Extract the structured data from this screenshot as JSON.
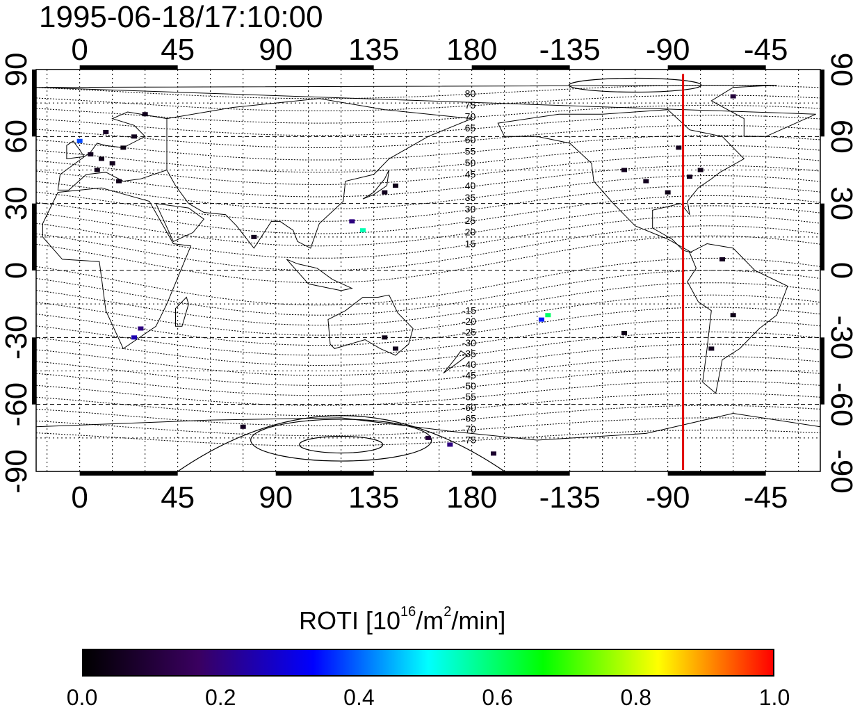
{
  "title": "1995-06-18/17:10:00",
  "axes": {
    "top_ticks": [
      "0",
      "45",
      "90",
      "135",
      "180",
      "-135",
      "-90",
      "-45"
    ],
    "bottom_ticks": [
      "0",
      "45",
      "90",
      "135",
      "180",
      "-135",
      "-90",
      "-45"
    ],
    "left_ticks": [
      "90",
      "60",
      "30",
      "0",
      "-30",
      "-60",
      "-90"
    ],
    "right_ticks": [
      "90",
      "60",
      "30",
      "0",
      "-30",
      "-60",
      "-90"
    ],
    "lon_range": [
      -20,
      340
    ],
    "lat_range": [
      -90,
      90
    ]
  },
  "magnetic_lat_labels_north": [
    "80",
    "75",
    "70",
    "65",
    "60",
    "55",
    "50",
    "45",
    "40",
    "35",
    "30",
    "25",
    "20",
    "15"
  ],
  "magnetic_lat_labels_south": [
    "-15",
    "-20",
    "-25",
    "-30",
    "-35",
    "-40",
    "-45",
    "-50",
    "-55",
    "-60",
    "-65",
    "-70",
    "-75"
  ],
  "terminator_line": {
    "lon": -83,
    "color": "#e00000"
  },
  "colorbar": {
    "title_prefix": "ROTI  [10",
    "title_sup1": "16",
    "title_mid": "/m",
    "title_sup2": "2",
    "title_suffix": "/min]",
    "ticks": [
      "0.0",
      "0.2",
      "0.4",
      "0.6",
      "0.8",
      "1.0"
    ],
    "range": [
      0.0,
      1.0
    ],
    "colors": [
      "#000000",
      "#3a0060",
      "#0000ff",
      "#00ffff",
      "#00ff00",
      "#ffff00",
      "#ff0000"
    ]
  },
  "chart_data": {
    "type": "heatmap",
    "title": "1995-06-18/17:10:00",
    "colorbar_label": "ROTI  [10^16/m^2/min]",
    "value_range": [
      0.0,
      1.0
    ],
    "points": [
      {
        "lon": 5,
        "lat": 52,
        "v": 0.05
      },
      {
        "lon": 10,
        "lat": 50,
        "v": 0.04
      },
      {
        "lon": 15,
        "lat": 48,
        "v": 0.05
      },
      {
        "lon": 20,
        "lat": 55,
        "v": 0.03
      },
      {
        "lon": 8,
        "lat": 45,
        "v": 0.04
      },
      {
        "lon": 25,
        "lat": 60,
        "v": 0.05
      },
      {
        "lon": 0,
        "lat": 58,
        "v": 0.38
      },
      {
        "lon": 12,
        "lat": 62,
        "v": 0.06
      },
      {
        "lon": 30,
        "lat": 70,
        "v": 0.05
      },
      {
        "lon": 18,
        "lat": 40,
        "v": 0.04
      },
      {
        "lon": 130,
        "lat": 18,
        "v": 0.55
      },
      {
        "lon": 125,
        "lat": 22,
        "v": 0.2
      },
      {
        "lon": 140,
        "lat": 35,
        "v": 0.05
      },
      {
        "lon": 145,
        "lat": 38,
        "v": 0.04
      },
      {
        "lon": 80,
        "lat": 15,
        "v": 0.05
      },
      {
        "lon": 28,
        "lat": -26,
        "v": 0.2
      },
      {
        "lon": 25,
        "lat": -30,
        "v": 0.25
      },
      {
        "lon": 145,
        "lat": -35,
        "v": 0.05
      },
      {
        "lon": 140,
        "lat": -30,
        "v": 0.04
      },
      {
        "lon": -145,
        "lat": -20,
        "v": 0.6
      },
      {
        "lon": -148,
        "lat": -22,
        "v": 0.35
      },
      {
        "lon": -100,
        "lat": 40,
        "v": 0.05
      },
      {
        "lon": -90,
        "lat": 35,
        "v": 0.04
      },
      {
        "lon": -80,
        "lat": 42,
        "v": 0.05
      },
      {
        "lon": -75,
        "lat": 45,
        "v": 0.04
      },
      {
        "lon": -110,
        "lat": 45,
        "v": 0.05
      },
      {
        "lon": -85,
        "lat": 55,
        "v": 0.05
      },
      {
        "lon": -60,
        "lat": 78,
        "v": 0.1
      },
      {
        "lon": -65,
        "lat": 5,
        "v": 0.05
      },
      {
        "lon": -60,
        "lat": -20,
        "v": 0.04
      },
      {
        "lon": -70,
        "lat": -35,
        "v": 0.05
      },
      {
        "lon": -110,
        "lat": -28,
        "v": 0.04
      },
      {
        "lon": 160,
        "lat": -75,
        "v": 0.1
      },
      {
        "lon": 170,
        "lat": -78,
        "v": 0.2
      },
      {
        "lon": 75,
        "lat": -70,
        "v": 0.06
      },
      {
        "lon": -170,
        "lat": -82,
        "v": 0.08
      }
    ]
  }
}
